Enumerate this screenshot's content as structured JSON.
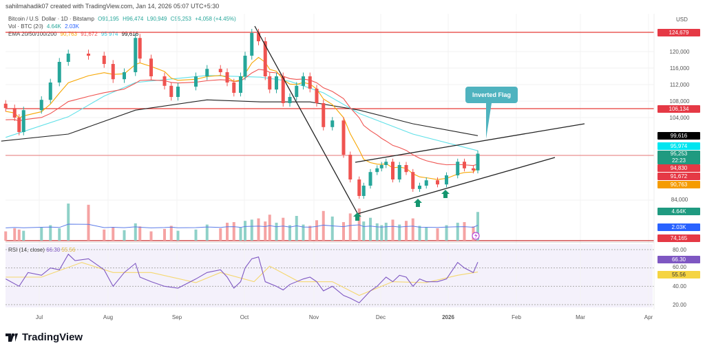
{
  "credit": "sahilmahadik07 created with TradingView.com, Jan 14, 2026 05:07 UTC+5:30",
  "legend": {
    "symbol": "Bitcoin / U.S. Dollar · 1D · Bitstamp",
    "open": "O91,195",
    "high": "H96,474",
    "low": "L90,949",
    "close": "C95,253",
    "change": "+4,058 (+4.45%)",
    "volume_label": "Vol · BTC (20)",
    "volume_value": "4.64K",
    "volume_ma": "2.03K",
    "ema_label": "EMA 20/50/100/200",
    "ema20": "90,763",
    "ema50": "91,672",
    "ema100": "95,974",
    "ema200": "99,616"
  },
  "price_axis": {
    "currency": "USD",
    "ticks": [
      "120,000",
      "116,000",
      "112,000",
      "108,000",
      "104,000",
      "84,000"
    ],
    "tags": {
      "resistance_top": "124,679",
      "resistance_mid": "106,134",
      "ema200": "99,616",
      "ema100": "95,974",
      "last_price": "95,253",
      "countdown": "22:23",
      "level": "94,830",
      "ema50": "91,672",
      "ema20": "90,763",
      "volume": "4.64K",
      "volume_ma": "2.03K",
      "support_low": "74,165"
    }
  },
  "rsi": {
    "label": "RSI (14, close)",
    "value": "66.30",
    "ma_value": "55.56",
    "ticks": [
      "80.00",
      "60.00",
      "40.00",
      "20.00"
    ]
  },
  "time_axis": [
    "Jul",
    "Aug",
    "Sep",
    "Oct",
    "Nov",
    "Dec",
    "2026",
    "Feb",
    "Mar",
    "Apr"
  ],
  "annotation": "Inverted Flag",
  "brand": "TradingView",
  "colors": {
    "up": "#26a69a",
    "down": "#ef5350",
    "ema20": "#f7a600",
    "ema50": "#ef5350",
    "ema100": "#5ee0e8",
    "ema200": "#222222",
    "rsi": "#7e57c2",
    "rsi_ma": "#f5d76e",
    "level": "#e53935",
    "callout": "#4fb3bf"
  },
  "chart_data": {
    "type": "candlestick",
    "yscale": "linear",
    "ylim": [
      74000,
      126000
    ],
    "dates": [
      "2025-06-16",
      "2025-06-20",
      "2025-06-22",
      "2025-06-24",
      "2025-07-02",
      "2025-07-06",
      "2025-07-10",
      "2025-07-14",
      "2025-07-23",
      "2025-07-30",
      "2025-08-03",
      "2025-08-08",
      "2025-08-13",
      "2025-08-15",
      "2025-08-20",
      "2025-08-26",
      "2025-08-29",
      "2025-09-01",
      "2025-09-09",
      "2025-09-14",
      "2025-09-20",
      "2025-09-23",
      "2025-09-26",
      "2025-09-29",
      "2025-10-01",
      "2025-10-04",
      "2025-10-07",
      "2025-10-10",
      "2025-10-12",
      "2025-10-15",
      "2025-10-18",
      "2025-10-21",
      "2025-10-24",
      "2025-10-27",
      "2025-10-30",
      "2025-11-02",
      "2025-11-05",
      "2025-11-09",
      "2025-11-14",
      "2025-11-17",
      "2025-11-21",
      "2025-11-23",
      "2025-11-26",
      "2025-11-29",
      "2025-12-01",
      "2025-12-03",
      "2025-12-06",
      "2025-12-09",
      "2025-12-12",
      "2025-12-15",
      "2025-12-18",
      "2025-12-21",
      "2025-12-26",
      "2025-12-30",
      "2026-01-04",
      "2026-01-07",
      "2026-01-11",
      "2026-01-13"
    ],
    "close": [
      106300,
      104000,
      100500,
      105800,
      108300,
      112500,
      117500,
      119500,
      119000,
      117000,
      113300,
      115000,
      123300,
      118300,
      114000,
      111700,
      109000,
      111500,
      114000,
      115800,
      115000,
      112500,
      110000,
      114000,
      119000,
      124500,
      122500,
      114000,
      110800,
      114000,
      107500,
      109000,
      111700,
      114000,
      111000,
      107500,
      101700,
      103300,
      95000,
      89000,
      85000,
      87500,
      90800,
      91700,
      92500,
      93300,
      89000,
      92500,
      90800,
      86700,
      87500,
      88800,
      87800,
      90000,
      93300,
      91700,
      91200,
      95253
    ],
    "volume_k": [
      1.5,
      2.0,
      1.8,
      1.6,
      2.2,
      2.5,
      2.0,
      6.0,
      5.8,
      1.8,
      2.2,
      1.7,
      2.8,
      2.3,
      1.5,
      1.9,
      2.4,
      1.6,
      1.8,
      2.6,
      2.0,
      2.9,
      3.0,
      2.1,
      3.2,
      3.4,
      3.6,
      3.1,
      4.2,
      2.9,
      3.7,
      2.5,
      4.0,
      2.6,
      2.4,
      3.3,
      4.8,
      3.9,
      3.0,
      4.4,
      5.2,
      3.1,
      3.7,
      2.8,
      2.5,
      2.9,
      3.4,
      2.6,
      3.2,
      3.6,
      2.4,
      2.2,
      2.0,
      2.5,
      2.9,
      3.0,
      2.3,
      4.64
    ],
    "ema200": {
      "dates": [
        "2025-06-14",
        "2025-07-14",
        "2025-08-13",
        "2025-09-14",
        "2025-10-08",
        "2025-10-30",
        "2025-11-21",
        "2025-12-15",
        "2026-01-13"
      ],
      "values": [
        98300,
        100000,
        105800,
        108300,
        107800,
        107800,
        105800,
        102500,
        99616
      ]
    },
    "ema100": {
      "dates": [
        "2025-06-16",
        "2025-07-14",
        "2025-07-30",
        "2025-08-13",
        "2025-09-14",
        "2025-10-08",
        "2025-10-21",
        "2025-11-05",
        "2025-11-21",
        "2025-12-15",
        "2026-01-13"
      ],
      "values": [
        99200,
        104200,
        109200,
        112500,
        114200,
        113800,
        112800,
        110000,
        105000,
        100000,
        95974
      ]
    },
    "rsi": {
      "dates": [
        "2025-06-16",
        "2025-06-22",
        "2025-06-26",
        "2025-07-02",
        "2025-07-06",
        "2025-07-10",
        "2025-07-14",
        "2025-07-17",
        "2025-07-23",
        "2025-07-30",
        "2025-08-03",
        "2025-08-08",
        "2025-08-13",
        "2025-08-15",
        "2025-08-20",
        "2025-08-26",
        "2025-09-01",
        "2025-09-09",
        "2025-09-14",
        "2025-09-20",
        "2025-09-23",
        "2025-09-26",
        "2025-09-29",
        "2025-10-01",
        "2025-10-04",
        "2025-10-07",
        "2025-10-10",
        "2025-10-15",
        "2025-10-18",
        "2025-10-21",
        "2025-10-27",
        "2025-10-30",
        "2025-11-02",
        "2025-11-05",
        "2025-11-09",
        "2025-11-14",
        "2025-11-17",
        "2025-11-21",
        "2025-11-26",
        "2025-11-29",
        "2025-12-03",
        "2025-12-06",
        "2025-12-09",
        "2025-12-12",
        "2025-12-15",
        "2025-12-18",
        "2025-12-21",
        "2025-12-26",
        "2025-12-30",
        "2026-01-04",
        "2026-01-07",
        "2026-01-11",
        "2026-01-13"
      ],
      "values": [
        48,
        40,
        55,
        52,
        60,
        58,
        75,
        68,
        70,
        58,
        40,
        55,
        65,
        50,
        45,
        40,
        38,
        48,
        55,
        58,
        50,
        38,
        45,
        60,
        70,
        72,
        45,
        40,
        36,
        42,
        48,
        50,
        45,
        35,
        40,
        30,
        27,
        22,
        35,
        40,
        50,
        45,
        52,
        50,
        40,
        48,
        45,
        45,
        48,
        66,
        60,
        55,
        66.3
      ]
    },
    "rsi_ma": {
      "dates": [
        "2025-06-16",
        "2025-07-02",
        "2025-07-20",
        "2025-08-03",
        "2025-08-20",
        "2025-09-09",
        "2025-09-20",
        "2025-10-05",
        "2025-10-12",
        "2025-10-25",
        "2025-11-09",
        "2025-11-21",
        "2025-12-06",
        "2025-12-21",
        "2026-01-04",
        "2026-01-13"
      ],
      "values": [
        50,
        50,
        66,
        55,
        55,
        44,
        55,
        45,
        62,
        45,
        45,
        30,
        45,
        44,
        52,
        55.56
      ]
    },
    "ema20_last": 90763,
    "ema50_last": 91672
  }
}
